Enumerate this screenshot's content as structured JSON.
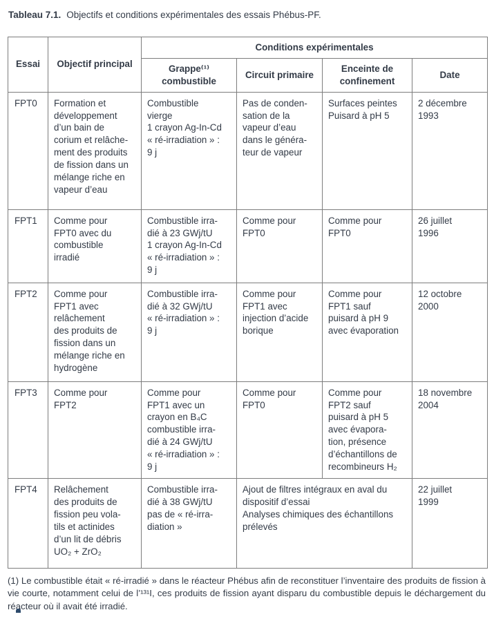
{
  "title": {
    "label": "Tableau 7.1.",
    "text": "Objectifs et conditions expérimentales des essais Phébus-PF."
  },
  "table": {
    "headers": {
      "essai": "Essai",
      "objectif": "Objectif principal",
      "conditions": "Conditions expérimentales",
      "grappe": "Grappe⁽¹⁾\ncombustible",
      "circuit": "Circuit primaire",
      "enceinte": "Enceinte de\nconfinement",
      "date": "Date"
    },
    "rows": [
      {
        "essai": "FPT0",
        "objectif": "Formation et\ndéveloppement\nd’un bain de\ncorium et relâche-\nment des produits\nde fission dans un\nmélange riche en\nvapeur d’eau",
        "grappe": "Combustible\nvierge\n1 crayon Ag-In-Cd\n« ré-irradiation » :\n9 j",
        "circuit": "Pas de conden-\nsation de la\nvapeur d’eau\ndans le généra-\nteur de vapeur",
        "enceinte": "Surfaces peintes\nPuisard à pH 5",
        "date": "2 décembre\n1993"
      },
      {
        "essai": "FPT1",
        "objectif": "Comme pour\nFPT0 avec du\ncombustible\nirradié",
        "grappe": "Combustible irra-\ndié à 23 GWj/tU\n1 crayon Ag-In-Cd\n« ré-irradiation » :\n9 j",
        "circuit": "Comme pour\nFPT0",
        "enceinte": "Comme pour\nFPT0",
        "date": "26 juillet\n1996"
      },
      {
        "essai": "FPT2",
        "objectif": "Comme pour\nFPT1 avec\nrelâchement\ndes produits de\nfission dans un\nmélange riche en\nhydrogène",
        "grappe": "Combustible irra-\ndié à 32 GWj/tU\n« ré-irradiation » :\n9 j",
        "circuit": "Comme pour\nFPT1 avec\ninjection d’acide\nborique",
        "enceinte": "Comme pour\nFPT1 sauf\npuisard à pH 9\navec évaporation",
        "date": "12 octobre\n2000"
      },
      {
        "essai": "FPT3",
        "objectif": "Comme pour\nFPT2",
        "grappe": "Comme pour\nFPT1 avec un\ncrayon en B₄C\ncombustible irra-\ndié à 24 GWj/tU\n« ré-irradiation » :\n9 j",
        "circuit": "Comme pour\nFPT0",
        "enceinte": "Comme pour\nFPT2 sauf\npuisard à pH 5\navec évapora-\ntion, présence\nd’échantillons de\nrecombineurs H₂",
        "date": "18 novembre\n2004"
      },
      {
        "essai": "FPT4",
        "objectif": "Relâchement\ndes produits de\nfission peu vola-\ntils et actinides\nd’un lit de débris\nUO₂ + ZrO₂",
        "grappe": "Combustible irra-\ndié à 38 GWj/tU\npas de « ré-irra-\ndiation »",
        "circuit_enceinte": "Ajout de filtres intégraux en aval du\ndispositif d’essai\nAnalyses chimiques des échantillons\nprélevés",
        "date": "22 juillet\n1999"
      }
    ]
  },
  "footnote": "(1) Le combustible était « ré-irradié » dans le réacteur Phébus afin de reconstituer l’inventaire des produits de fission à vie courte, notamment celui de l’¹³¹I, ces produits de fission ayant disparu du combustible depuis le déchargement du réacteur où il avait été irradié.",
  "colors": {
    "text": "#333B47",
    "border": "#7C7C7C",
    "bottom_mark": "#2D4A6B"
  }
}
